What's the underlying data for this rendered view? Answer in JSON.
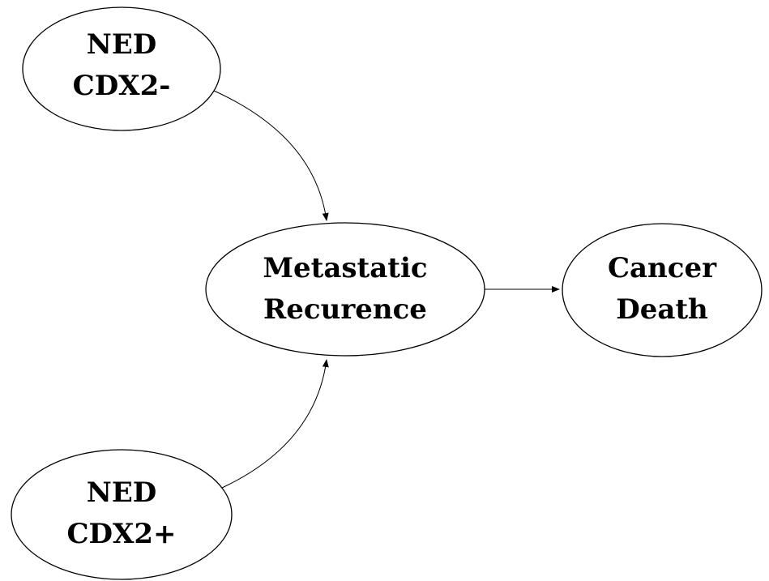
{
  "diagram": {
    "type": "flow",
    "nodes": {
      "ned_cdx2_neg": {
        "line1": "NED",
        "line2": "CDX2-"
      },
      "ned_cdx2_pos": {
        "line1": "NED",
        "line2": "CDX2+"
      },
      "metastatic_recurrence": {
        "line1": "Metastatic",
        "line2": "Recurence"
      },
      "cancer_death": {
        "line1": "Cancer",
        "line2": "Death"
      }
    },
    "edges": [
      {
        "from": "ned_cdx2_neg",
        "to": "metastatic_recurrence"
      },
      {
        "from": "ned_cdx2_pos",
        "to": "metastatic_recurrence"
      },
      {
        "from": "metastatic_recurrence",
        "to": "cancer_death"
      }
    ],
    "colors": {
      "stroke": "#000000",
      "background": "#ffffff",
      "text": "#000000"
    }
  }
}
